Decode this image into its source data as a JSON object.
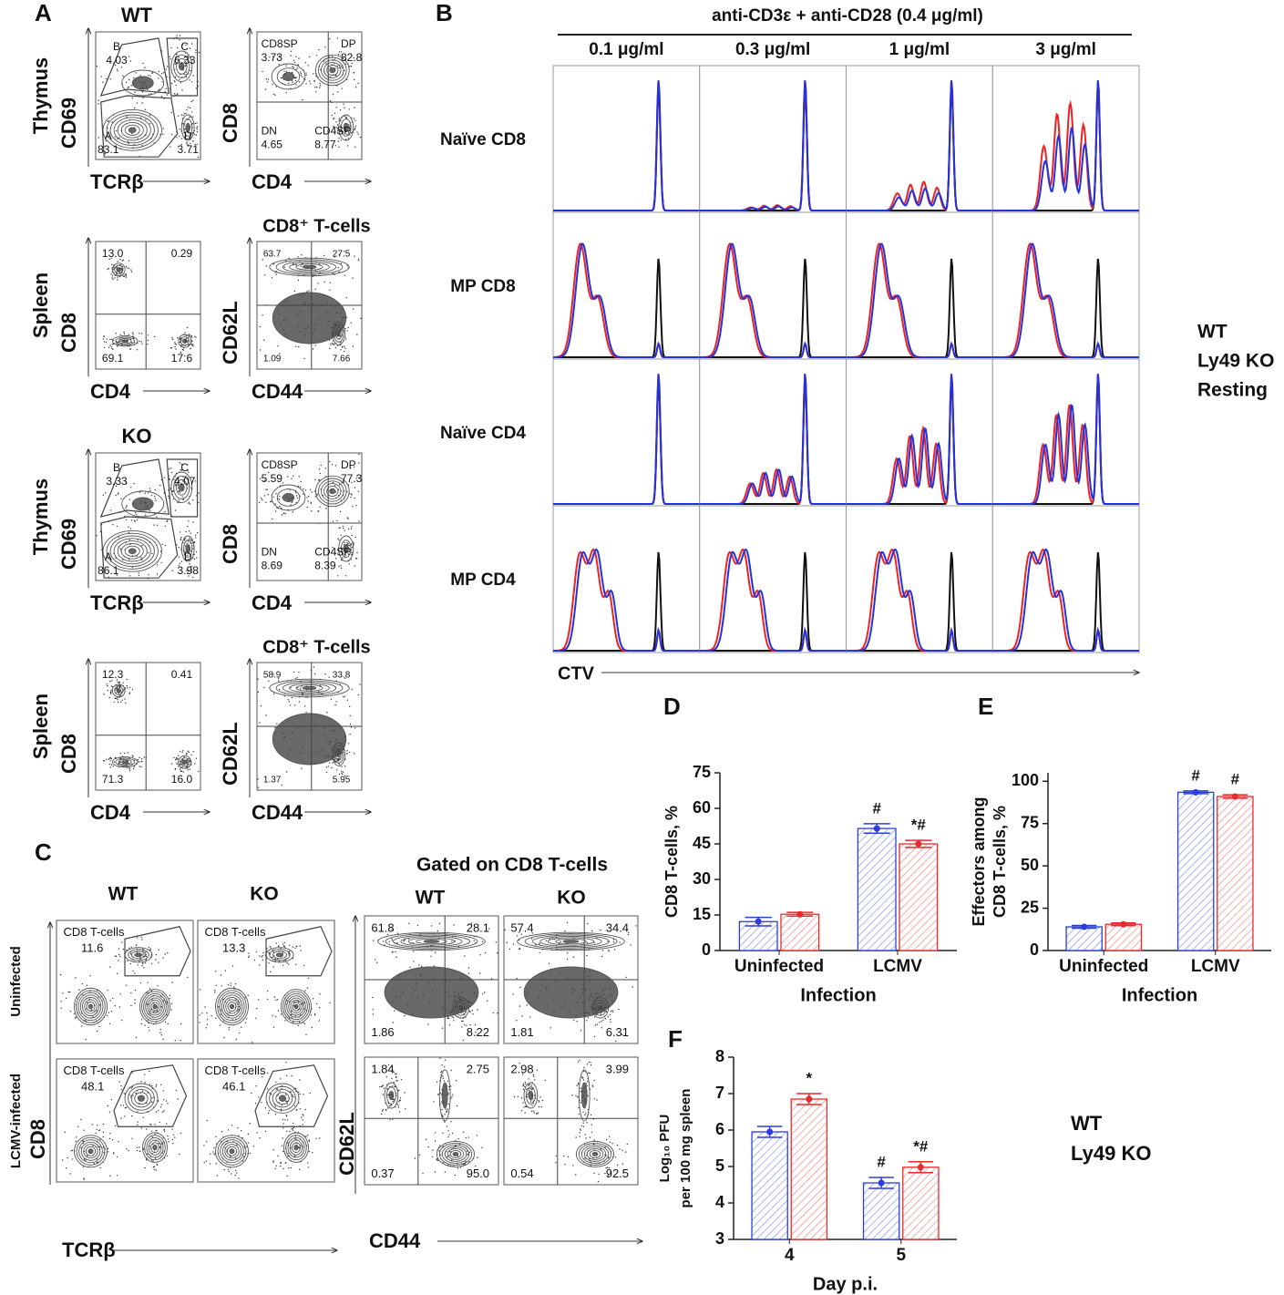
{
  "panel_a": {
    "label": "A",
    "groups": [
      {
        "title": "WT",
        "color": "#2233dd",
        "rows": [
          {
            "tissue": "Thymus",
            "plots": [
              {
                "y_label": "CD69",
                "x_label": "TCRβ",
                "gates": [
                  {
                    "name": "B",
                    "value": "4.03"
                  },
                  {
                    "name": "C",
                    "value": "6.33"
                  },
                  {
                    "name": "A",
                    "value": "83.1"
                  },
                  {
                    "name": "D",
                    "value": "3.71"
                  }
                ]
              },
              {
                "y_label": "CD8",
                "x_label": "CD4",
                "gates": [
                  {
                    "name": "CD8SP",
                    "value": "3.73"
                  },
                  {
                    "name": "DP",
                    "value": "82.8"
                  },
                  {
                    "name": "DN",
                    "value": "4.65"
                  },
                  {
                    "name": "CD4SP",
                    "value": "8.77"
                  }
                ]
              }
            ]
          },
          {
            "tissue": "Spleen",
            "plots": [
              {
                "y_label": "CD8",
                "x_label": "CD4",
                "quadrants": [
                  "13.0",
                  "0.29",
                  "69.1",
                  "17.6"
                ]
              },
              {
                "title": "CD8⁺ T-cells",
                "y_label": "CD62L",
                "x_label": "CD44",
                "quadrants": [
                  "63.7",
                  "27.5",
                  "1.09",
                  "7.66"
                ]
              }
            ]
          }
        ]
      },
      {
        "title": "KO",
        "color": "#ee2222",
        "rows": [
          {
            "tissue": "Thymus",
            "plots": [
              {
                "y_label": "CD69",
                "x_label": "TCRβ",
                "gates": [
                  {
                    "name": "B",
                    "value": "3.33"
                  },
                  {
                    "name": "C",
                    "value": "4.07"
                  },
                  {
                    "name": "A",
                    "value": "86.1"
                  },
                  {
                    "name": "D",
                    "value": "3.98"
                  }
                ]
              },
              {
                "y_label": "CD8",
                "x_label": "CD4",
                "gates": [
                  {
                    "name": "CD8SP",
                    "value": "5.59"
                  },
                  {
                    "name": "DP",
                    "value": "77.3"
                  },
                  {
                    "name": "DN",
                    "value": "8.69"
                  },
                  {
                    "name": "CD4SP",
                    "value": "8.39"
                  }
                ]
              }
            ]
          },
          {
            "tissue": "Spleen",
            "plots": [
              {
                "y_label": "CD8",
                "x_label": "CD4",
                "quadrants": [
                  "12.3",
                  "0.41",
                  "71.3",
                  "16.0"
                ]
              },
              {
                "title": "CD8⁺ T-cells",
                "y_label": "CD62L",
                "x_label": "CD44",
                "quadrants": [
                  "58.9",
                  "33.8",
                  "1.37",
                  "5.95"
                ]
              }
            ]
          }
        ]
      }
    ]
  },
  "panel_b": {
    "label": "B",
    "header": "anti-CD3ε + anti-CD28 (0.4 μg/ml)",
    "columns": [
      "0.1 μg/ml",
      "0.3 μg/ml",
      "1 μg/ml",
      "3 μg/ml"
    ],
    "rows": [
      "Naïve CD8",
      "MP CD8",
      "Naïve CD4",
      "MP CD4"
    ],
    "x_label": "CTV",
    "legend": [
      {
        "name": "WT",
        "color": "#2233dd"
      },
      {
        "name": "Ly49 KO",
        "color": "#ee2222"
      },
      {
        "name": "Resting",
        "color": "#111111"
      }
    ]
  },
  "panel_c": {
    "label": "C",
    "column_colors": [
      "#2233dd",
      "#ee2222"
    ],
    "left": {
      "columns": [
        "WT",
        "KO"
      ],
      "rows": [
        "Uninfected",
        "LCMV-infected"
      ],
      "y_label": "CD8",
      "x_label": "TCRβ",
      "gate_name": "CD8 T-cells",
      "gates": [
        [
          "11.6",
          "13.3"
        ],
        [
          "48.1",
          "46.1"
        ]
      ]
    },
    "right": {
      "title": "Gated on CD8 T-cells",
      "columns": [
        "WT",
        "KO"
      ],
      "y_label": "CD62L",
      "x_label": "CD44",
      "quadrants": [
        [
          [
            "61.8",
            "28.1",
            "1.86",
            "8.22"
          ],
          [
            "57.4",
            "34.4",
            "1.81",
            "6.31"
          ]
        ],
        [
          [
            "1.84",
            "2.75",
            "0.37",
            "95.0"
          ],
          [
            "2.98",
            "3.99",
            "0.54",
            "92.5"
          ]
        ]
      ]
    }
  },
  "chart_data": [
    {
      "type": "bar",
      "panel": "D",
      "ylabel": [
        "CD8 T-cells, %"
      ],
      "xlabel": "Infection",
      "categories": [
        "Uninfected",
        "LCMV"
      ],
      "series": [
        {
          "color": "#2a3ee0",
          "values": [
            12.2,
            51.5
          ],
          "errors": [
            1.8,
            2.0
          ],
          "annotations": [
            null,
            "#"
          ]
        },
        {
          "color": "#e82a2a",
          "values": [
            15.3,
            45.0
          ],
          "errors": [
            0.8,
            1.5
          ],
          "annotations": [
            null,
            "*#"
          ]
        }
      ],
      "annotation_color": "#e8302a",
      "ylim": [
        0,
        75
      ],
      "yticks": [
        0,
        15,
        30,
        45,
        60,
        75
      ]
    },
    {
      "type": "bar",
      "panel": "E",
      "ylabel": [
        "Effectors among",
        "CD8 T-cells, %"
      ],
      "xlabel": "Infection",
      "categories": [
        "Uninfected",
        "LCMV"
      ],
      "series": [
        {
          "color": "#2a3ee0",
          "values": [
            14.0,
            93.5
          ],
          "errors": [
            0.8,
            0.8
          ],
          "annotations": [
            null,
            "#"
          ]
        },
        {
          "color": "#e82a2a",
          "values": [
            15.5,
            91.0
          ],
          "errors": [
            0.8,
            1.0
          ],
          "annotations": [
            null,
            "#"
          ]
        }
      ],
      "annotation_color": "#e8302a",
      "ylim": [
        0,
        105
      ],
      "yticks": [
        0,
        25,
        50,
        75,
        100
      ]
    },
    {
      "type": "bar",
      "panel": "F",
      "ylabel": [
        "Log₁₀ PFU",
        "per 100 mg spleen"
      ],
      "xlabel": "Day p.i.",
      "categories": [
        "4",
        "5"
      ],
      "series": [
        {
          "name": "WT",
          "color": "#2a3ee0",
          "values": [
            5.95,
            4.55
          ],
          "errors": [
            0.15,
            0.15
          ],
          "annotations": [
            null,
            "#"
          ]
        },
        {
          "name": "Ly49 KO",
          "color": "#e82a2a",
          "values": [
            6.85,
            4.98
          ],
          "errors": [
            0.15,
            0.15
          ],
          "annotations": [
            "*",
            "*#"
          ]
        }
      ],
      "annotation_color": "#e8302a",
      "ylim": [
        3,
        8
      ],
      "yticks": [
        3,
        4,
        5,
        6,
        7,
        8
      ],
      "legend": "right"
    }
  ]
}
